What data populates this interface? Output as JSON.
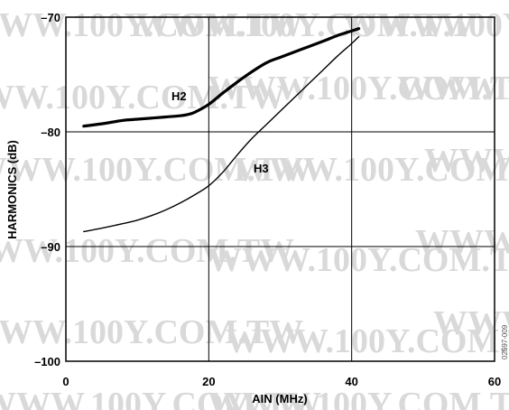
{
  "chart_data": {
    "type": "line",
    "xlabel": "AIN (MHz)",
    "ylabel": "HARMONICS (dB)",
    "xlim": [
      0,
      60
    ],
    "ylim": [
      -100,
      -70
    ],
    "x_ticks": [
      0,
      20,
      40,
      60
    ],
    "y_ticks": [
      -100,
      -90,
      -80,
      -70
    ],
    "x_tick_labels": [
      "0",
      "20",
      "40",
      "60"
    ],
    "y_tick_labels": [
      "–100",
      "–90",
      "–80",
      "–70"
    ],
    "grid": true,
    "legend": "none",
    "series": [
      {
        "name": "H2",
        "line_weight": "thick",
        "x": [
          2.5,
          5,
          8,
          10,
          12,
          14,
          16,
          17,
          18,
          20,
          22,
          25,
          28,
          30,
          33,
          36,
          38,
          40,
          41
        ],
        "y": [
          -79.5,
          -79.3,
          -79.0,
          -78.9,
          -78.8,
          -78.7,
          -78.6,
          -78.5,
          -78.3,
          -77.6,
          -76.6,
          -75.2,
          -74.0,
          -73.5,
          -72.8,
          -72.1,
          -71.6,
          -71.2,
          -71.0
        ]
      },
      {
        "name": "H3",
        "line_weight": "thin",
        "x": [
          2.5,
          5,
          8,
          10,
          12,
          14,
          16,
          18,
          20,
          22,
          24,
          26,
          28,
          30,
          32,
          34,
          36,
          38,
          40,
          41
        ],
        "y": [
          -88.7,
          -88.4,
          -88.0,
          -87.7,
          -87.3,
          -86.8,
          -86.2,
          -85.5,
          -84.7,
          -83.5,
          -82.0,
          -80.6,
          -79.4,
          -78.2,
          -77.0,
          -75.8,
          -74.6,
          -73.4,
          -72.3,
          -71.7
        ]
      }
    ]
  },
  "watermark_text": "WWW.100Y.COM.TW",
  "figure_code": "02597-009"
}
